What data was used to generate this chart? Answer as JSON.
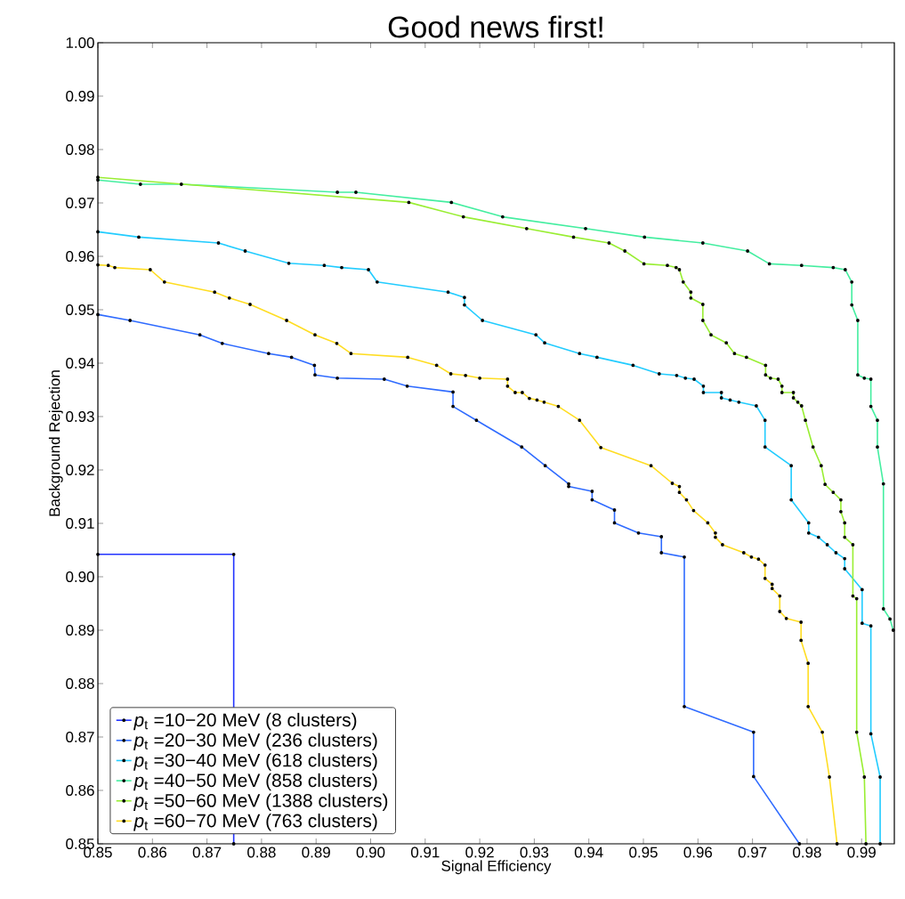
{
  "chart_data": {
    "type": "line",
    "title": "Good news first!",
    "xlabel": "Signal Efficiency",
    "ylabel": "Background Rejection",
    "xlim": [
      0.85,
      0.996
    ],
    "ylim": [
      0.85,
      1.0
    ],
    "xticks": [
      0.85,
      0.86,
      0.87,
      0.88,
      0.89,
      {
        "value": 0.9,
        "label": "0.90"
      },
      0.91,
      0.92,
      0.93,
      0.94,
      0.95,
      0.96,
      0.97,
      0.98,
      0.99
    ],
    "yticks": [
      0.85,
      0.86,
      0.87,
      0.88,
      0.89,
      {
        "value": 0.9,
        "label": "0.90"
      },
      0.91,
      0.92,
      0.93,
      0.94,
      0.95,
      0.96,
      0.97,
      0.98,
      0.99,
      {
        "value": 1.0,
        "label": "1.00"
      }
    ],
    "legend": "bottom left",
    "marker": "circle",
    "line_style": "solid",
    "series": [
      {
        "name": "*p*$_{t}$ =10−20 MeV (8 clusters)",
        "color": "#2233ff",
        "x": [
          0.85,
          0.8749,
          0.8749
        ],
        "values": [
          0.9042,
          0.9042,
          0.85
        ]
      },
      {
        "name": "*p*$_{t}$ =20−30 MeV (236 clusters)",
        "color": "#2f6bff",
        "x": [
          0.85,
          0.8559,
          0.8687,
          0.8728,
          0.8813,
          0.8855,
          0.8897,
          0.8898,
          0.8939,
          0.9025,
          0.9067,
          0.9151,
          0.9151,
          0.9194,
          0.9277,
          0.932,
          0.9363,
          0.9363,
          0.9406,
          0.9406,
          0.9447,
          0.9447,
          0.9491,
          0.9533,
          0.9533,
          0.9575,
          0.9575,
          0.9702,
          0.9702,
          0.9786
        ],
        "values": [
          0.9491,
          0.948,
          0.9453,
          0.9437,
          0.9418,
          0.9411,
          0.9396,
          0.9378,
          0.9372,
          0.937,
          0.9357,
          0.9346,
          0.9319,
          0.9293,
          0.9243,
          0.9208,
          0.9174,
          0.9169,
          0.916,
          0.9144,
          0.9125,
          0.9101,
          0.9082,
          0.9075,
          0.9045,
          0.9037,
          0.8757,
          0.8709,
          0.8626,
          0.85
        ]
      },
      {
        "name": "*p*$_{t}$ =30−40 MeV (618 clusters)",
        "color": "#22ccff",
        "x": [
          0.85,
          0.8575,
          0.8721,
          0.877,
          0.885,
          0.8915,
          0.8947,
          0.8996,
          0.9012,
          0.9142,
          0.9172,
          0.9172,
          0.9205,
          0.9303,
          0.9319,
          0.9383,
          0.9415,
          0.9481,
          0.9529,
          0.9561,
          0.9577,
          0.9593,
          0.961,
          0.961,
          0.9643,
          0.9643,
          0.9659,
          0.9675,
          0.9707,
          0.9723,
          0.9723,
          0.9771,
          0.9771,
          0.9803,
          0.9803,
          0.9821,
          0.9837,
          0.9853,
          0.9869,
          0.9869,
          0.9901,
          0.9901,
          0.9917,
          0.9917,
          0.9934,
          0.9934
        ],
        "values": [
          0.9646,
          0.9636,
          0.9625,
          0.961,
          0.9587,
          0.9583,
          0.9579,
          0.9575,
          0.9552,
          0.9533,
          0.9523,
          0.9509,
          0.948,
          0.9453,
          0.9438,
          0.9418,
          0.9411,
          0.9396,
          0.938,
          0.9377,
          0.9372,
          0.937,
          0.9357,
          0.9345,
          0.9345,
          0.9335,
          0.9331,
          0.9327,
          0.932,
          0.9293,
          0.9243,
          0.9208,
          0.9144,
          0.9101,
          0.9082,
          0.9074,
          0.906,
          0.9045,
          0.9034,
          0.9015,
          0.8976,
          0.8913,
          0.8908,
          0.8706,
          0.8625,
          0.85
        ]
      },
      {
        "name": "*p*$_{t}$ =40−50 MeV (858 clusters)",
        "color": "#44eea0",
        "x": [
          0.85,
          0.8578,
          0.8653,
          0.8939,
          0.8973,
          0.9148,
          0.9242,
          0.9394,
          0.9502,
          0.9609,
          0.9691,
          0.9731,
          0.979,
          0.9848,
          0.987,
          0.9882,
          0.9882,
          0.9893,
          0.9893,
          0.9905,
          0.9917,
          0.9917,
          0.9929,
          0.9929,
          0.994,
          0.994,
          0.9952,
          0.9958
        ],
        "values": [
          0.9743,
          0.9735,
          0.9735,
          0.972,
          0.972,
          0.9701,
          0.9674,
          0.9652,
          0.9636,
          0.9625,
          0.961,
          0.9586,
          0.9583,
          0.9579,
          0.9575,
          0.9552,
          0.9509,
          0.948,
          0.9378,
          0.9372,
          0.937,
          0.9319,
          0.9293,
          0.9243,
          0.9174,
          0.894,
          0.8921,
          0.89
        ]
      },
      {
        "name": "*p*$_{t}$ =50−60 MeV (1388 clusters)",
        "color": "#99ee33",
        "x": [
          0.85,
          0.907,
          0.917,
          0.9286,
          0.9372,
          0.9437,
          0.9466,
          0.9501,
          0.9544,
          0.956,
          0.9566,
          0.9573,
          0.9587,
          0.9587,
          0.9609,
          0.9609,
          0.9624,
          0.9652,
          0.9667,
          0.9689,
          0.9724,
          0.9724,
          0.9733,
          0.9747,
          0.9754,
          0.9754,
          0.9775,
          0.9775,
          0.9783,
          0.979,
          0.9797,
          0.9811,
          0.9826,
          0.9833,
          0.9848,
          0.9862,
          0.9862,
          0.9869,
          0.9869,
          0.9884,
          0.9884,
          0.9891,
          0.9891,
          0.9905,
          0.9908
        ],
        "values": [
          0.9748,
          0.9701,
          0.9674,
          0.9652,
          0.9636,
          0.9625,
          0.961,
          0.9586,
          0.9583,
          0.9579,
          0.9575,
          0.9552,
          0.9533,
          0.9522,
          0.951,
          0.948,
          0.9453,
          0.9438,
          0.9418,
          0.9411,
          0.9396,
          0.9378,
          0.9372,
          0.937,
          0.9357,
          0.9345,
          0.9345,
          0.9335,
          0.9327,
          0.932,
          0.9293,
          0.9243,
          0.9208,
          0.9173,
          0.9158,
          0.9144,
          0.9122,
          0.9101,
          0.9074,
          0.906,
          0.8964,
          0.8959,
          0.8709,
          0.8625,
          0.85
        ]
      },
      {
        "name": "*p*$_{t}$ =60−70 MeV (763 clusters)",
        "color": "#ffdd22",
        "x": [
          0.85,
          0.8519,
          0.8531,
          0.8596,
          0.8622,
          0.8714,
          0.8741,
          0.8779,
          0.8846,
          0.8898,
          0.8938,
          0.8964,
          0.9068,
          0.9121,
          0.9147,
          0.9174,
          0.92,
          0.9251,
          0.9251,
          0.9265,
          0.9278,
          0.9291,
          0.9305,
          0.9318,
          0.9344,
          0.9383,
          0.9422,
          0.9514,
          0.9553,
          0.9566,
          0.9566,
          0.9579,
          0.9592,
          0.9618,
          0.9632,
          0.9632,
          0.9645,
          0.9684,
          0.9698,
          0.9711,
          0.9723,
          0.9723,
          0.9736,
          0.9736,
          0.975,
          0.975,
          0.9762,
          0.9789,
          0.9789,
          0.9802,
          0.9802,
          0.9828,
          0.9841,
          0.9855
        ],
        "values": [
          0.9584,
          0.9583,
          0.9579,
          0.9575,
          0.9552,
          0.9533,
          0.9522,
          0.951,
          0.948,
          0.9453,
          0.9437,
          0.9418,
          0.9411,
          0.9396,
          0.938,
          0.9377,
          0.9372,
          0.937,
          0.9357,
          0.9345,
          0.9345,
          0.9334,
          0.9331,
          0.9327,
          0.9319,
          0.9293,
          0.9242,
          0.9208,
          0.9175,
          0.9169,
          0.9158,
          0.9144,
          0.9124,
          0.9101,
          0.9082,
          0.9074,
          0.906,
          0.9045,
          0.9037,
          0.9033,
          0.9022,
          0.8997,
          0.8986,
          0.8978,
          0.8964,
          0.8935,
          0.8922,
          0.8915,
          0.8881,
          0.8838,
          0.8757,
          0.8709,
          0.8625,
          0.85
        ]
      }
    ]
  }
}
